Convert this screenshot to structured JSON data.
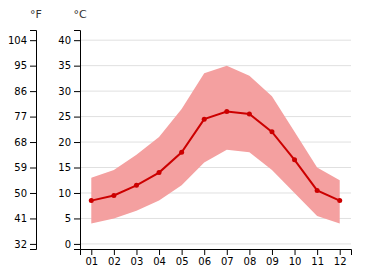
{
  "chart_data": {
    "type": "line",
    "x": [
      1,
      2,
      3,
      4,
      5,
      6,
      7,
      8,
      9,
      10,
      11,
      12
    ],
    "xlim": [
      0.5,
      12.5
    ],
    "xticks": [
      {
        "value": 1,
        "label": "01"
      },
      {
        "value": 2,
        "label": "02"
      },
      {
        "value": 3,
        "label": "03"
      },
      {
        "value": 4,
        "label": "04"
      },
      {
        "value": 5,
        "label": "05"
      },
      {
        "value": 6,
        "label": "06"
      },
      {
        "value": 7,
        "label": "07"
      },
      {
        "value": 8,
        "label": "08"
      },
      {
        "value": 9,
        "label": "09"
      },
      {
        "value": 10,
        "label": "10"
      },
      {
        "value": 11,
        "label": "11"
      },
      {
        "value": 12,
        "label": "12"
      }
    ],
    "ylabel": "°C",
    "ylim": [
      -1,
      42
    ],
    "yticks": [
      0,
      5,
      10,
      15,
      20,
      25,
      30,
      35,
      40
    ],
    "y2label": "°F",
    "y2lim": [
      30.2,
      107.6
    ],
    "y2ticks": [
      32,
      41,
      50,
      59,
      68,
      77,
      86,
      95,
      104
    ],
    "grid": true,
    "series": [
      {
        "type": "band",
        "color": "#f4a0a0",
        "lower": [
          4.0,
          5.0,
          6.5,
          8.5,
          11.5,
          16.0,
          18.5,
          18.0,
          14.5,
          10.0,
          5.5,
          4.0
        ],
        "upper": [
          13.0,
          14.5,
          17.5,
          21.0,
          26.5,
          33.5,
          35.0,
          33.0,
          29.0,
          22.0,
          15.0,
          12.5
        ]
      },
      {
        "type": "line",
        "color": "#cc0000",
        "marker": "circle",
        "values": [
          8.5,
          9.5,
          11.5,
          14.0,
          18.0,
          24.5,
          26.0,
          25.5,
          22.0,
          16.5,
          10.5,
          8.5
        ]
      }
    ]
  }
}
